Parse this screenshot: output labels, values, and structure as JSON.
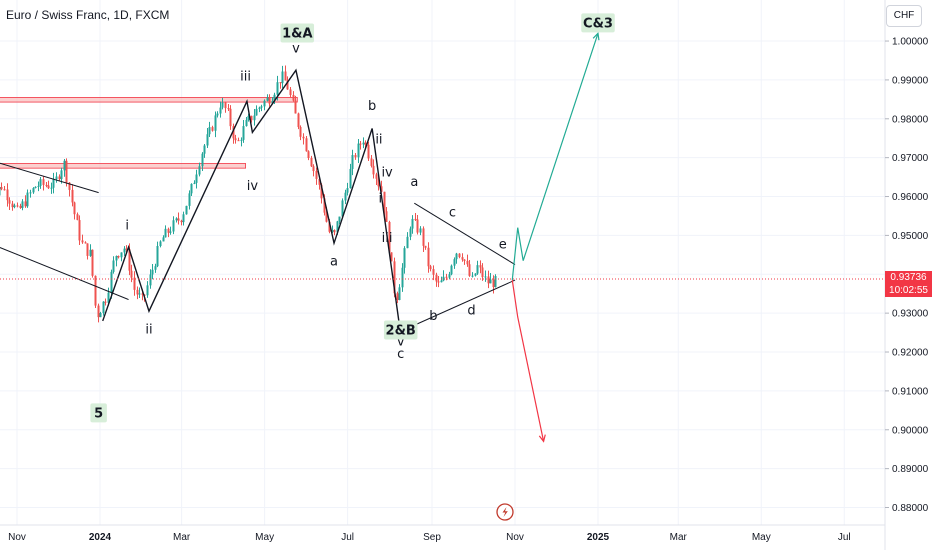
{
  "header": {
    "symbol_title": "Euro / Swiss Franc, 1D, FXCM",
    "currency_button": "CHF"
  },
  "price_badge": {
    "price": "0.93736",
    "countdown": "10:02:55"
  },
  "chart_data": {
    "type": "candlestick",
    "title": "Euro / Swiss Franc, 1D, FXCM",
    "xlabel": "",
    "ylabel": "",
    "ylim": [
      0.8755,
      1.0085
    ],
    "y_ticks": [
      "1.00000",
      "0.99000",
      "0.98000",
      "0.97000",
      "0.96000",
      "0.95000",
      "0.94000",
      "0.93000",
      "0.92000",
      "0.91000",
      "0.90000",
      "0.89000",
      "0.88000"
    ],
    "x_ticks": [
      "Nov",
      "2024",
      "Mar",
      "May",
      "Jul",
      "Sep",
      "Nov",
      "2025",
      "Mar",
      "May",
      "Jul"
    ],
    "x_tick_dates": [
      "2023-11-01",
      "2024-01-01",
      "2024-03-01",
      "2024-05-01",
      "2024-07-01",
      "2024-09-01",
      "2024-11-01",
      "2025-01-01",
      "2025-03-01",
      "2025-05-01",
      "2025-07-01"
    ],
    "last_price": 0.93736,
    "colors": {
      "up": "#26a69a",
      "down": "#ef5350",
      "bullish_projection": "#22ab94",
      "bearish_projection": "#f23645",
      "resistance_zone": "#f7a9a7",
      "label_bg": "#d7eed9"
    },
    "price_path": [
      [
        "2023-10-09",
        0.955
      ],
      [
        "2023-10-20",
        0.963
      ],
      [
        "2023-11-01",
        0.956
      ],
      [
        "2023-11-15",
        0.963
      ],
      [
        "2023-11-28",
        0.963
      ],
      [
        "2023-12-05",
        0.969
      ],
      [
        "2023-12-12",
        0.957
      ],
      [
        "2023-12-18",
        0.948
      ],
      [
        "2023-12-25",
        0.945
      ],
      [
        "2023-12-29",
        0.929
      ],
      [
        "2024-01-05",
        0.934
      ],
      [
        "2024-01-12",
        0.945
      ],
      [
        "2024-01-19",
        0.947
      ],
      [
        "2024-01-26",
        0.936
      ],
      [
        "2024-02-01",
        0.933
      ],
      [
        "2024-02-08",
        0.941
      ],
      [
        "2024-02-15",
        0.949
      ],
      [
        "2024-02-22",
        0.952
      ],
      [
        "2024-03-01",
        0.955
      ],
      [
        "2024-03-08",
        0.962
      ],
      [
        "2024-03-15",
        0.971
      ],
      [
        "2024-03-22",
        0.977
      ],
      [
        "2024-03-29",
        0.984
      ],
      [
        "2024-04-03",
        0.982
      ],
      [
        "2024-04-10",
        0.973
      ],
      [
        "2024-04-16",
        0.978
      ],
      [
        "2024-04-22",
        0.981
      ],
      [
        "2024-04-29",
        0.984
      ],
      [
        "2024-05-06",
        0.986
      ],
      [
        "2024-05-13",
        0.991
      ],
      [
        "2024-05-17",
        0.989
      ],
      [
        "2024-05-24",
        0.98
      ],
      [
        "2024-06-03",
        0.97
      ],
      [
        "2024-06-10",
        0.962
      ],
      [
        "2024-06-17",
        0.951
      ],
      [
        "2024-06-21",
        0.95
      ],
      [
        "2024-06-28",
        0.96
      ],
      [
        "2024-07-05",
        0.97
      ],
      [
        "2024-07-12",
        0.975
      ],
      [
        "2024-07-19",
        0.968
      ],
      [
        "2024-07-26",
        0.961
      ],
      [
        "2024-08-01",
        0.945
      ],
      [
        "2024-08-05",
        0.933
      ],
      [
        "2024-08-09",
        0.94
      ],
      [
        "2024-08-16",
        0.954
      ],
      [
        "2024-08-23",
        0.951
      ],
      [
        "2024-08-30",
        0.941
      ],
      [
        "2024-09-05",
        0.937
      ],
      [
        "2024-09-11",
        0.939
      ],
      [
        "2024-09-18",
        0.946
      ],
      [
        "2024-09-23",
        0.945
      ],
      [
        "2024-09-30",
        0.938
      ],
      [
        "2024-10-04",
        0.942
      ],
      [
        "2024-10-11",
        0.938
      ],
      [
        "2024-10-18",
        0.938
      ]
    ],
    "trendlines": [
      {
        "points": [
          [
            "2023-10-01",
            0.9705
          ],
          [
            "2023-12-31",
            0.961
          ]
        ]
      },
      {
        "points": [
          [
            "2023-10-01",
            0.9495
          ],
          [
            "2024-01-22",
            0.9335
          ]
        ]
      },
      {
        "points": [
          [
            "2024-08-19",
            0.9583
          ],
          [
            "2024-11-01",
            0.9425
          ]
        ]
      },
      {
        "points": [
          [
            "2024-08-05",
            0.9247
          ],
          [
            "2024-11-01",
            0.9385
          ]
        ]
      }
    ],
    "wave_path": [
      {
        "points": [
          [
            "2024-01-03",
            0.928
          ],
          [
            "2024-01-22",
            0.947
          ],
          [
            "2024-02-06",
            0.9305
          ],
          [
            "2024-04-18",
            0.9845
          ],
          [
            "2024-04-22",
            0.9765
          ],
          [
            "2024-05-24",
            0.9925
          ],
          [
            "2024-06-21",
            0.948
          ],
          [
            "2024-07-19",
            0.9775
          ],
          [
            "2024-08-09",
            0.9245
          ]
        ]
      }
    ],
    "resistance_zones": [
      {
        "x0": "2023-10-01",
        "x1": "2024-05-25",
        "y_top": 0.9855,
        "y_bottom": 0.9843
      },
      {
        "x0": "2023-10-01",
        "x1": "2024-04-17",
        "y_top": 0.9685,
        "y_bottom": 0.9673
      }
    ],
    "projections": [
      {
        "direction": "up",
        "points": [
          [
            "2024-10-30",
            0.9385
          ],
          [
            "2024-11-03",
            0.952
          ],
          [
            "2024-11-07",
            0.9435
          ],
          [
            "2025-01-01",
            1.002
          ]
        ]
      },
      {
        "direction": "down",
        "points": [
          [
            "2024-10-30",
            0.9385
          ],
          [
            "2024-11-03",
            0.929
          ],
          [
            "2024-11-22",
            0.897
          ]
        ]
      }
    ],
    "wave_labels": [
      {
        "text": "i",
        "date": "2024-01-21",
        "price": 0.9515
      },
      {
        "text": "ii",
        "date": "2024-02-06",
        "price": 0.9248
      },
      {
        "text": "iii",
        "date": "2024-04-17",
        "price": 0.9898
      },
      {
        "text": "iv",
        "date": "2024-04-22",
        "price": 0.9617
      },
      {
        "text": "v",
        "date": "2024-05-24",
        "price": 0.997
      },
      {
        "text": "a",
        "date": "2024-06-21",
        "price": 0.9422
      },
      {
        "text": "b",
        "date": "2024-07-19",
        "price": 0.9822
      },
      {
        "text": "ii",
        "date": "2024-07-24",
        "price": 0.9737
      },
      {
        "text": "iv",
        "date": "2024-07-30",
        "price": 0.9652
      },
      {
        "text": "i",
        "date": "2024-07-25",
        "price": 0.9585
      },
      {
        "text": "iii",
        "date": "2024-07-30",
        "price": 0.9483
      },
      {
        "text": "v",
        "date": "2024-08-09",
        "price": 0.9217
      },
      {
        "text": "c",
        "date": "2024-08-09",
        "price": 0.9185
      },
      {
        "text": "a",
        "date": "2024-08-19",
        "price": 0.9627
      },
      {
        "text": "b",
        "date": "2024-09-02",
        "price": 0.9282
      },
      {
        "text": "c",
        "date": "2024-09-16",
        "price": 0.9548
      },
      {
        "text": "d",
        "date": "2024-09-30",
        "price": 0.9296
      },
      {
        "text": "e",
        "date": "2024-10-23",
        "price": 0.9466
      }
    ],
    "degree_labels": [
      {
        "text": "1&A",
        "date": "2024-05-25",
        "price": 1.0009
      },
      {
        "text": "2&B",
        "date": "2024-08-09",
        "price": 0.9245
      },
      {
        "text": "C&3",
        "date": "2025-01-01",
        "price": 1.0035
      },
      {
        "text": "5",
        "date": "2023-12-31",
        "price": 0.9032
      }
    ]
  },
  "icons": {
    "event_marker": "lightning-icon"
  }
}
